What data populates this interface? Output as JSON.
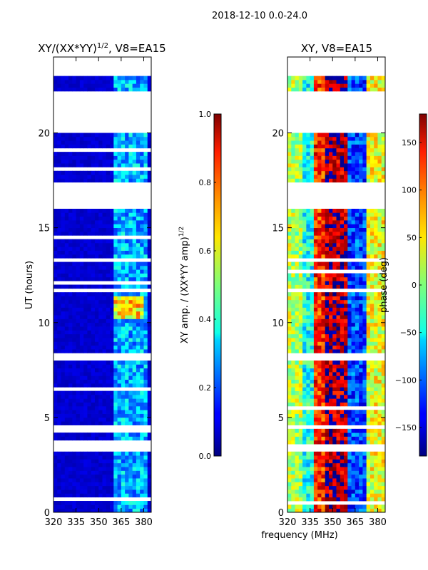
{
  "suptitle": "2018-12-10 0.0-24.0",
  "xlabel": "frequency (MHz)",
  "chart_data": [
    {
      "type": "heatmap",
      "title_main": "XY/(XX*YY)",
      "title_sup": "1/2",
      "title_rest": ", V8=EA15",
      "ylabel": "UT (hours)",
      "xlim": [
        320,
        385
      ],
      "ylim": [
        0,
        24
      ],
      "xticks": [
        320,
        335,
        350,
        365,
        380
      ],
      "yticks": [
        0,
        5,
        10,
        15,
        20
      ],
      "colorbar": {
        "label_main": "XY amp. / (XX*YY amp)",
        "label_sup": "1/2",
        "range": [
          0.0,
          1.0
        ],
        "ticks": [
          "0.0",
          "0.2",
          "0.4",
          "0.6",
          "0.8",
          "1.0"
        ]
      },
      "missing_hour_ranges": [
        [
          3.3,
          3.6
        ],
        [
          8.0,
          8.35
        ],
        [
          11.55,
          11.9
        ],
        [
          16.0,
          17.5
        ],
        [
          20.0,
          22.3
        ],
        [
          23.0,
          24.0
        ]
      ],
      "background_value": 0.08,
      "active_band_mhz": [
        360,
        383
      ],
      "active_band_value": 0.3,
      "high_region": {
        "freq_mhz": [
          361,
          381
        ],
        "hours": [
          10.3,
          11.3
        ],
        "value": 0.65
      }
    },
    {
      "type": "heatmap",
      "title": "XY, V8=EA15",
      "ylabel": "",
      "xlim": [
        320,
        385
      ],
      "ylim": [
        0,
        24
      ],
      "xticks": [
        320,
        335,
        350,
        365,
        380
      ],
      "yticks": [
        0,
        5,
        10,
        15,
        20
      ],
      "colorbar": {
        "label": "phase (deg)",
        "range": [
          -180,
          180
        ],
        "ticks": [
          "150",
          "100",
          "50",
          "0",
          "−50",
          "−100",
          "−150"
        ]
      },
      "missing_hour_ranges": [
        [
          3.3,
          3.6
        ],
        [
          8.0,
          8.35
        ],
        [
          11.55,
          11.9
        ],
        [
          16.0,
          17.5
        ],
        [
          20.0,
          22.3
        ],
        [
          23.0,
          24.0
        ]
      ],
      "band_phases": [
        {
          "freq_mhz": [
            320,
            330
          ],
          "phase_deg": 20
        },
        {
          "freq_mhz": [
            330,
            337
          ],
          "phase_deg": -40
        },
        {
          "freq_mhz": [
            337,
            346
          ],
          "phase_deg": 120
        },
        {
          "freq_mhz": [
            346,
            360
          ],
          "phase_deg": 160
        },
        {
          "freq_mhz": [
            360,
            372
          ],
          "phase_deg": -110
        },
        {
          "freq_mhz": [
            372,
            385
          ],
          "phase_deg": 40
        }
      ]
    }
  ]
}
